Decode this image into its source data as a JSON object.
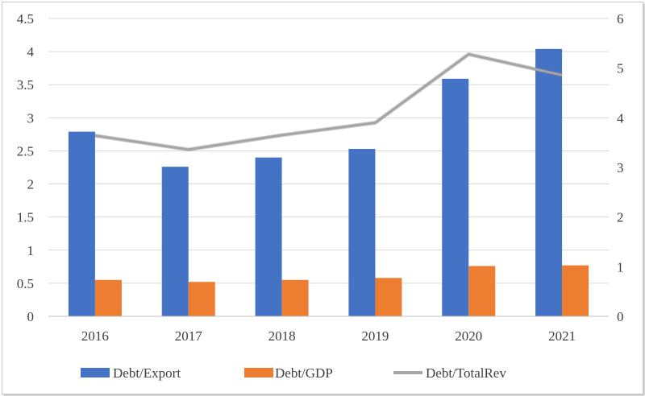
{
  "chart_data": {
    "type": "bar",
    "categories": [
      "2016",
      "2017",
      "2018",
      "2019",
      "2020",
      "2021"
    ],
    "series": [
      {
        "name": "Debt/Export",
        "axis": "left",
        "type": "bar",
        "color": "#4472C4",
        "values": [
          2.79,
          2.26,
          2.4,
          2.53,
          3.59,
          4.04
        ]
      },
      {
        "name": "Debt/GDP",
        "axis": "left",
        "type": "bar",
        "color": "#ED7D31",
        "values": [
          0.55,
          0.52,
          0.55,
          0.58,
          0.76,
          0.77
        ]
      },
      {
        "name": "Debt/TotalRev",
        "axis": "right",
        "type": "line",
        "color": "#A5A5A5",
        "values": [
          3.64,
          3.36,
          3.65,
          3.9,
          5.28,
          4.86
        ]
      }
    ],
    "ylim": [
      0,
      4.5
    ],
    "yticks": [
      "0",
      "0.5",
      "1",
      "1.5",
      "2",
      "2.5",
      "3",
      "3.5",
      "4",
      "4.5"
    ],
    "y2lim": [
      0,
      6
    ],
    "y2ticks": [
      "0",
      "1",
      "2",
      "3",
      "4",
      "5",
      "6"
    ],
    "title": "",
    "xlabel": "",
    "ylabel": "",
    "grid": true,
    "legend": "bottom"
  }
}
